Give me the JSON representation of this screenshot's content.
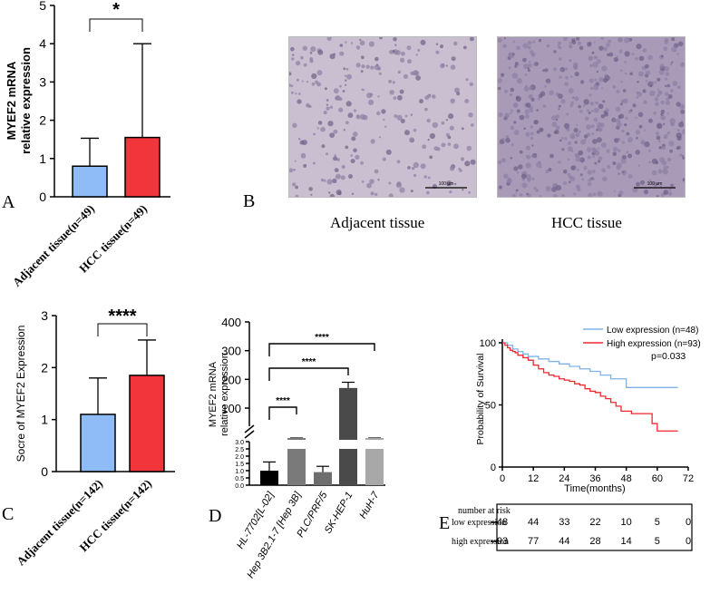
{
  "panel_letters": {
    "a": "A",
    "b": "B",
    "c": "C",
    "d": "D",
    "e": "E"
  },
  "panel_b": {
    "left_caption": "Adjacent tissue",
    "right_caption": "HCC tissue",
    "left_scale_label": "100 μm",
    "right_scale_label": "100 μm",
    "left_color": "#c9bfd0",
    "right_color": "#a99ab8"
  },
  "chart_data": [
    {
      "panel": "A",
      "type": "bar",
      "ylabel": "MYEF2 mRNA relative expression",
      "ylim": [
        0,
        5
      ],
      "yticks": [
        0,
        1,
        2,
        3,
        4,
        5
      ],
      "categories": [
        "Adjacent tissue(n=49)",
        "HCC tissue(n=49)"
      ],
      "values": [
        0.8,
        1.55
      ],
      "error_upper": [
        1.53,
        4.0
      ],
      "colors": [
        "#8fbcf7",
        "#f2353a"
      ],
      "significance": "*"
    },
    {
      "panel": "C",
      "type": "bar",
      "ylabel": "Socre of MYEF2 Expression",
      "ylim": [
        0,
        3
      ],
      "yticks": [
        0,
        1,
        2,
        3
      ],
      "categories": [
        "Adjacent tissue(n=142)",
        "HCC tissue(n=142)"
      ],
      "values": [
        1.1,
        1.85
      ],
      "error_upper": [
        1.8,
        2.53
      ],
      "colors": [
        "#8fbcf7",
        "#f2353a"
      ],
      "significance": "****"
    },
    {
      "panel": "D",
      "type": "bar",
      "ylabel": "MYEF2 mRNA relative expression",
      "axis_break": true,
      "lower_segment": {
        "ylim": [
          0,
          3.0
        ],
        "ytick_labels": [
          "0.0",
          "0.5",
          "1.0",
          "1.5",
          "2.0",
          "2.5",
          "3.0"
        ]
      },
      "upper_segment": {
        "ylim": [
          0,
          400
        ],
        "yticks": [
          100,
          200,
          300,
          400
        ]
      },
      "categories": [
        "HL-7702[L-02]",
        "Hep 3B2.1-7 [Hep 3B]",
        "PLC/PRF/5",
        "SK-HEP-1",
        "HuH-7"
      ],
      "values": [
        1.0,
        35,
        0.9,
        170,
        30
      ],
      "error_upper": [
        1.6,
        40,
        1.3,
        190,
        34
      ],
      "colors": [
        "#000000",
        "#7a7a7a",
        "#6e6e6e",
        "#4a4a4a",
        "#a8a8a8"
      ],
      "comparisons": [
        {
          "from": "HL-7702[L-02]",
          "to": "Hep 3B2.1-7 [Hep 3B]",
          "label": "****"
        },
        {
          "from": "HL-7702[L-02]",
          "to": "SK-HEP-1",
          "label": "****"
        },
        {
          "from": "HL-7702[L-02]",
          "to": "HuH-7",
          "label": "****"
        }
      ]
    },
    {
      "panel": "E",
      "type": "line",
      "title": "",
      "xlabel": "Time(months)",
      "ylabel": "Probability of Survival",
      "xlim": [
        0,
        72
      ],
      "ylim": [
        0,
        100
      ],
      "xticks": [
        0,
        12,
        24,
        36,
        48,
        60,
        72
      ],
      "yticks": [
        0,
        50,
        100
      ],
      "pvalue": "p=0.033",
      "series": [
        {
          "name": "Low expression (n=48)",
          "color": "#7fb2e8",
          "points": [
            [
              0,
              100
            ],
            [
              2,
              98
            ],
            [
              4,
              95
            ],
            [
              6,
              93
            ],
            [
              8,
              91
            ],
            [
              10,
              89
            ],
            [
              14,
              87
            ],
            [
              18,
              85
            ],
            [
              22,
              83
            ],
            [
              26,
              81
            ],
            [
              30,
              79
            ],
            [
              34,
              77
            ],
            [
              38,
              74
            ],
            [
              42,
              71
            ],
            [
              46,
              71
            ],
            [
              48,
              64
            ],
            [
              60,
              64
            ],
            [
              68,
              64
            ]
          ]
        },
        {
          "name": "High expression (n=93)",
          "color": "#f0282d",
          "points": [
            [
              0,
              100
            ],
            [
              1,
              98
            ],
            [
              2,
              96
            ],
            [
              3,
              94
            ],
            [
              4,
              93
            ],
            [
              5,
              92
            ],
            [
              6,
              90
            ],
            [
              8,
              88
            ],
            [
              10,
              86
            ],
            [
              12,
              82
            ],
            [
              14,
              79
            ],
            [
              16,
              76
            ],
            [
              18,
              74
            ],
            [
              20,
              73
            ],
            [
              22,
              71
            ],
            [
              24,
              70
            ],
            [
              26,
              69
            ],
            [
              28,
              67
            ],
            [
              30,
              66
            ],
            [
              32,
              63
            ],
            [
              34,
              61
            ],
            [
              36,
              60
            ],
            [
              38,
              57
            ],
            [
              40,
              55
            ],
            [
              42,
              52
            ],
            [
              44,
              49
            ],
            [
              46,
              45
            ],
            [
              50,
              43
            ],
            [
              56,
              43
            ],
            [
              58,
              35
            ],
            [
              60,
              29
            ],
            [
              68,
              29
            ]
          ]
        }
      ],
      "risk_table": {
        "header": "number at risk",
        "rows": [
          {
            "label": "low expression",
            "values": [
              "48",
              "44",
              "33",
              "22",
              "10",
              "5",
              "0"
            ]
          },
          {
            "label": "high expression",
            "values": [
              "93",
              "77",
              "44",
              "28",
              "14",
              "5",
              "0"
            ]
          }
        ]
      }
    }
  ]
}
